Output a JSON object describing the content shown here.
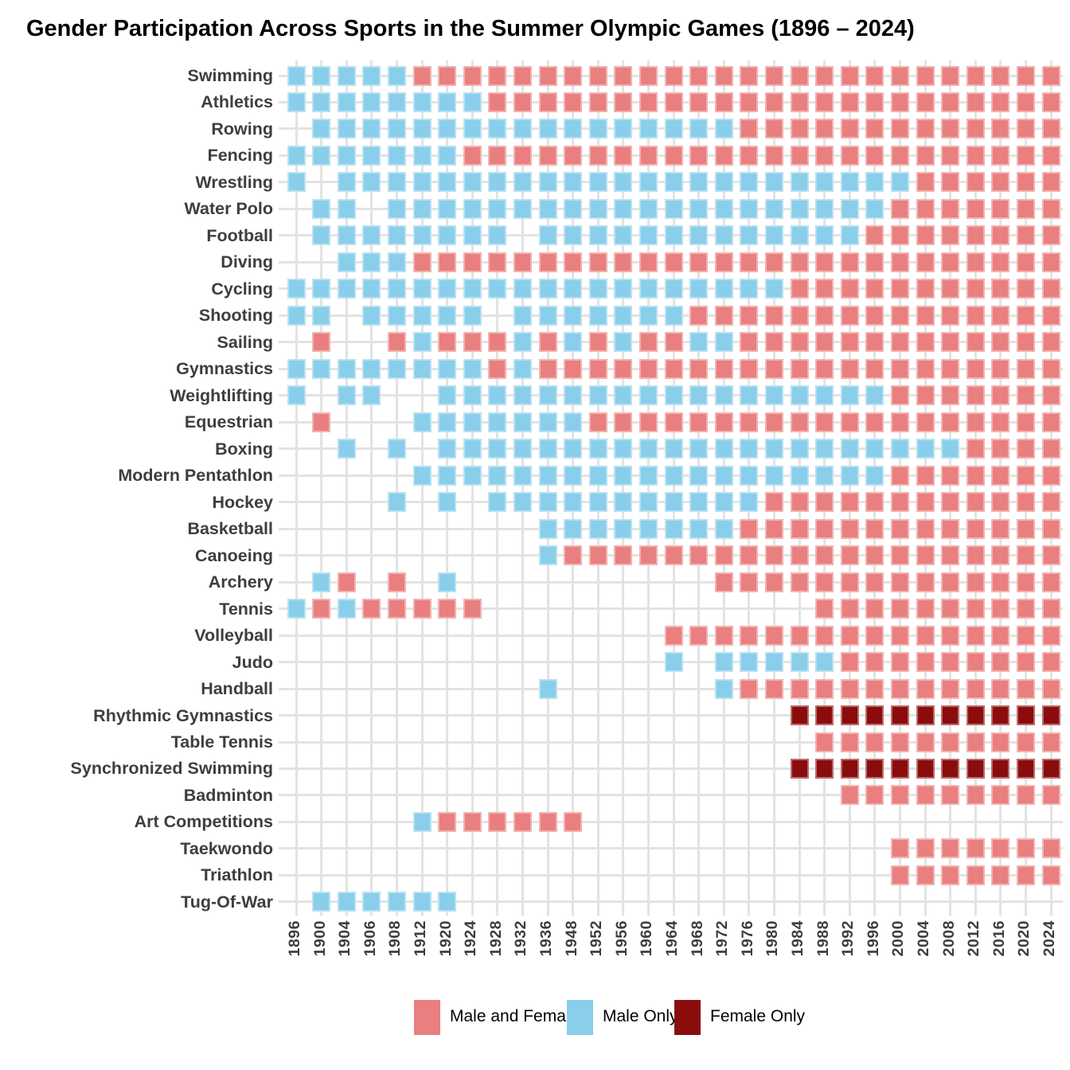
{
  "title": "Gender Participation Across Sports in the Summer Olympic Games (1896 – 2024)",
  "colors": {
    "male_and_female": "#E97F7F",
    "male_only": "#89CEEA",
    "female_only": "#8B0C0C",
    "grid": "#E3E3E3",
    "axis_text": "#3E3E3E"
  },
  "legend": [
    {
      "label": "Male and Female",
      "key": "male_and_female"
    },
    {
      "label": "Male Only",
      "key": "male_only"
    },
    {
      "label": "Female Only",
      "key": "female_only"
    }
  ],
  "chart_data": {
    "type": "heatmap",
    "x_years": [
      "1896",
      "1900",
      "1904",
      "1906",
      "1908",
      "1912",
      "1920",
      "1924",
      "1928",
      "1932",
      "1936",
      "1948",
      "1952",
      "1956",
      "1960",
      "1964",
      "1968",
      "1972",
      "1976",
      "1980",
      "1984",
      "1988",
      "1992",
      "1996",
      "2000",
      "2004",
      "2008",
      "2012",
      "2016",
      "2020",
      "2024"
    ],
    "status_codes": {
      "B": "Male and Female",
      "M": "Male Only",
      "F": "Female Only",
      ".": "sport not held"
    },
    "legend_position": "bottom",
    "grid": true,
    "rows": [
      {
        "sport": "Swimming",
        "pattern": "MMMMMBBBBBBBBBBBBBBBBBBBBBBBBBB"
      },
      {
        "sport": "Athletics",
        "pattern": "MMMMMMMMBBBBBBBBBBBBBBBBBBBBBBB"
      },
      {
        "sport": "Rowing",
        "pattern": ".MMMMMMMMMMMMMMMMMBBBBBBBBBBBBB"
      },
      {
        "sport": "Fencing",
        "pattern": "MMMMMMMBBBBBBBBBBBBBBBBBBBBBBBB"
      },
      {
        "sport": "Wrestling",
        "pattern": "M.MMMMMMMMMMMMMMMMMMMMMMMBBBBBB"
      },
      {
        "sport": "Water Polo",
        "pattern": ".MM.MMMMMMMMMMMMMMMMMMMMBBBBBBB"
      },
      {
        "sport": "Football",
        "pattern": ".MMMMMMMM.MMMMMMMMMMMMMBBBBBBBB"
      },
      {
        "sport": "Diving",
        "pattern": "..MMMBBBBBBBBBBBBBBBBBBBBBBBBBB"
      },
      {
        "sport": "Cycling",
        "pattern": "MMMMMMMMMMMMMMMMMMMMBBBBBBBBBBB"
      },
      {
        "sport": "Shooting",
        "pattern": "MM.MMMMM.MMMMMMMBBBBBBBBBBBBBBB"
      },
      {
        "sport": "Sailing",
        "pattern": ".B..BMBBBMBMBMBBMMBBBBBBBBBBBBB"
      },
      {
        "sport": "Gymnastics",
        "pattern": "MMMMMMMMBMBBBBBBBBBBBBBBBBBBBBB"
      },
      {
        "sport": "Weightlifting",
        "pattern": "M.MM..MMMMMMMMMMMMMMMMMMBBBBBBB"
      },
      {
        "sport": "Equestrian",
        "pattern": ".B...MMMMMMMBBBBBBBBBBBBBBBBBBB"
      },
      {
        "sport": "Boxing",
        "pattern": "..M.M.MMMMMMMMMMMMMMMMMMMMMBBBB"
      },
      {
        "sport": "Modern Pentathlon",
        "pattern": ".....MMMMMMMMMMMMMMMMMMMBBBBBBB"
      },
      {
        "sport": "Hockey",
        "pattern": "....M.M.MMMMMMMMMMMBBBBBBBBBBBB"
      },
      {
        "sport": "Basketball",
        "pattern": "..........MMMMMMMMBBBBBBBBBBBBB"
      },
      {
        "sport": "Canoeing",
        "pattern": "..........MBBBBBBBBBBBBBBBBBBBB"
      },
      {
        "sport": "Archery",
        "pattern": ".MB.B.M..........BBBBBBBBBBBBBB"
      },
      {
        "sport": "Tennis",
        "pattern": "MBMBBBBB.............BBBBBBBBBB"
      },
      {
        "sport": "Volleyball",
        "pattern": "...............BBBBBBBBBBBBBBBB"
      },
      {
        "sport": "Judo",
        "pattern": "...............M.MMMMMBBBBBBBBB"
      },
      {
        "sport": "Handball",
        "pattern": "..........M......MBBBBBBBBBBBBB"
      },
      {
        "sport": "Rhythmic Gymnastics",
        "pattern": "....................FFFFFFFFFFF"
      },
      {
        "sport": "Table Tennis",
        "pattern": ".....................BBBBBBBBBB"
      },
      {
        "sport": "Synchronized Swimming",
        "pattern": "....................FFFFFFFFFFF"
      },
      {
        "sport": "Badminton",
        "pattern": "......................BBBBBBBBB"
      },
      {
        "sport": "Art Competitions",
        "pattern": ".....MBBBBBB..................."
      },
      {
        "sport": "Taekwondo",
        "pattern": "........................BBBBBBB"
      },
      {
        "sport": "Triathlon",
        "pattern": "........................BBBBBBB"
      },
      {
        "sport": "Tug-Of-War",
        "pattern": ".MMMMMM........................"
      }
    ]
  }
}
